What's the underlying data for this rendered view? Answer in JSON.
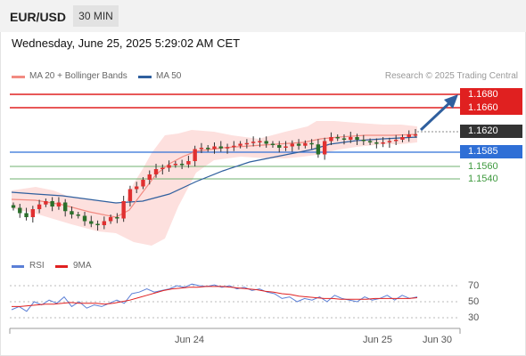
{
  "header": {
    "symbol": "EUR/USD",
    "timeframe": "30 MIN"
  },
  "datetime": "Wednesday, June 25, 2025 5:29:02 AM CET",
  "legend": {
    "ma20": {
      "label": "MA 20 + Bollinger Bands",
      "color": "#f28b82"
    },
    "ma50": {
      "label": "MA 50",
      "color": "#2f5f9e"
    }
  },
  "credit": "Research © 2025 Trading Central",
  "rsi_legend": {
    "rsi": {
      "label": "RSI",
      "color": "#5b7fd6"
    },
    "ma9": {
      "label": "9MA",
      "color": "#e02020"
    }
  },
  "levels": {
    "resistance": [
      "1.1680",
      "1.1660"
    ],
    "current": "1.1620",
    "pivot": "1.1585",
    "support": [
      "1.1560",
      "1.1540"
    ]
  },
  "rsi_levels": [
    "70",
    "50",
    "30"
  ],
  "x_labels": [
    "Jun 24",
    "Jun 25",
    "Jun 30"
  ],
  "colors": {
    "resistance": "#e02020",
    "pivot": "#2f6fd6",
    "support": "#3f9a3f",
    "candle_up": "#e03030",
    "candle_down": "#2a6f2a",
    "band_fill": "#fde0de",
    "arrow": "#2f5f9e",
    "current_badge": "#333333"
  },
  "chart_data": {
    "type": "candlestick",
    "instrument": "EUR/USD",
    "interval": "30 MIN",
    "y_axis_levels": [
      1.168,
      1.166,
      1.162,
      1.1585,
      1.156,
      1.154
    ],
    "close_series": [
      1.151,
      1.1502,
      1.1496,
      1.1508,
      1.1515,
      1.152,
      1.1512,
      1.1518,
      1.1505,
      1.15,
      1.1498,
      1.149,
      1.1486,
      1.1484,
      1.149,
      1.1496,
      1.1494,
      1.152,
      1.1538,
      1.1542,
      1.1552,
      1.156,
      1.1568,
      1.157,
      1.1574,
      1.1576,
      1.1575,
      1.158,
      1.1598,
      1.16,
      1.1598,
      1.1602,
      1.1599,
      1.1601,
      1.1603,
      1.1606,
      1.1607,
      1.1609,
      1.161,
      1.1606,
      1.1604,
      1.16,
      1.1602,
      1.1606,
      1.1603,
      1.1607,
      1.1605,
      1.159,
      1.161,
      1.1616,
      1.1614,
      1.1612,
      1.1616,
      1.1612,
      1.161,
      1.1608,
      1.1606,
      1.1608,
      1.161,
      1.1612,
      1.1616,
      1.162,
      1.162
    ],
    "rsi_series": [
      40,
      44,
      38,
      50,
      46,
      52,
      48,
      56,
      44,
      50,
      42,
      46,
      44,
      48,
      52,
      48,
      60,
      62,
      66,
      62,
      64,
      66,
      70,
      68,
      72,
      70,
      69,
      71,
      68,
      70,
      66,
      68,
      64,
      66,
      62,
      60,
      54,
      56,
      50,
      54,
      52,
      56,
      50,
      58,
      54,
      52,
      50,
      56,
      52,
      54,
      58,
      52,
      58,
      54,
      56
    ],
    "rsi_ma9_series": [
      44,
      44,
      45,
      46,
      47,
      47,
      48,
      49,
      48,
      48,
      48,
      47,
      48,
      50,
      52,
      55,
      58,
      61,
      64,
      66,
      67,
      68,
      68,
      69,
      69,
      69,
      68,
      67,
      66,
      65,
      63,
      62,
      60,
      59,
      57,
      56,
      55,
      54,
      54,
      53,
      53,
      53,
      53,
      54,
      54,
      54,
      54,
      54,
      55
    ],
    "rsi_ylim": [
      30,
      70
    ],
    "projection": "arrow from 1.1620 toward 1.1680"
  }
}
